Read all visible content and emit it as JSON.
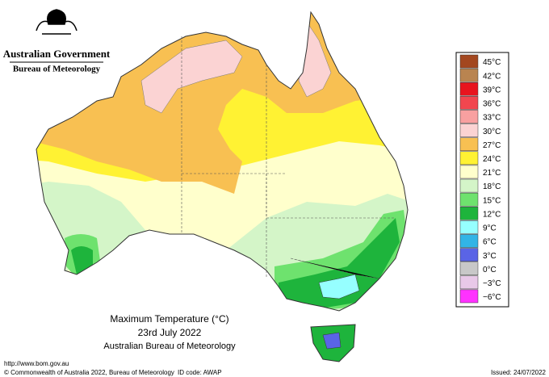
{
  "header": {
    "government": "Australian Government",
    "agency": "Bureau of Meteorology"
  },
  "map": {
    "title": "Maximum Temperature (°C)",
    "date": "23rd July 2022",
    "source": "Australian Bureau of Meteorology"
  },
  "legend": {
    "items": [
      {
        "label": "45°C",
        "color": "#a3471f"
      },
      {
        "label": "42°C",
        "color": "#b98450"
      },
      {
        "label": "39°C",
        "color": "#e8141e"
      },
      {
        "label": "36°C",
        "color": "#f2464f"
      },
      {
        "label": "33°C",
        "color": "#f8a0a0"
      },
      {
        "label": "30°C",
        "color": "#fbd3d3"
      },
      {
        "label": "27°C",
        "color": "#f8c052"
      },
      {
        "label": "24°C",
        "color": "#fff233"
      },
      {
        "label": "21°C",
        "color": "#ffffcc"
      },
      {
        "label": "18°C",
        "color": "#d4f5c8"
      },
      {
        "label": "15°C",
        "color": "#6ee26e"
      },
      {
        "label": "12°C",
        "color": "#1eb43c"
      },
      {
        "label": "9°C",
        "color": "#96ffff"
      },
      {
        "label": "6°C",
        "color": "#32b4e6"
      },
      {
        "label": "3°C",
        "color": "#5a64e6"
      },
      {
        "label": "0°C",
        "color": "#c8c8c8"
      },
      {
        "label": "−3°C",
        "color": "#e8c8e8"
      },
      {
        "label": "−6°C",
        "color": "#ff32ff"
      }
    ]
  },
  "footer": {
    "url": "http://www.bom.gov.au",
    "copyright": "© Commonwealth of Australia 2022, Bureau of Meteorology",
    "id_code": "ID code: AWAP",
    "issued": "Issued: 24/07/2022"
  }
}
